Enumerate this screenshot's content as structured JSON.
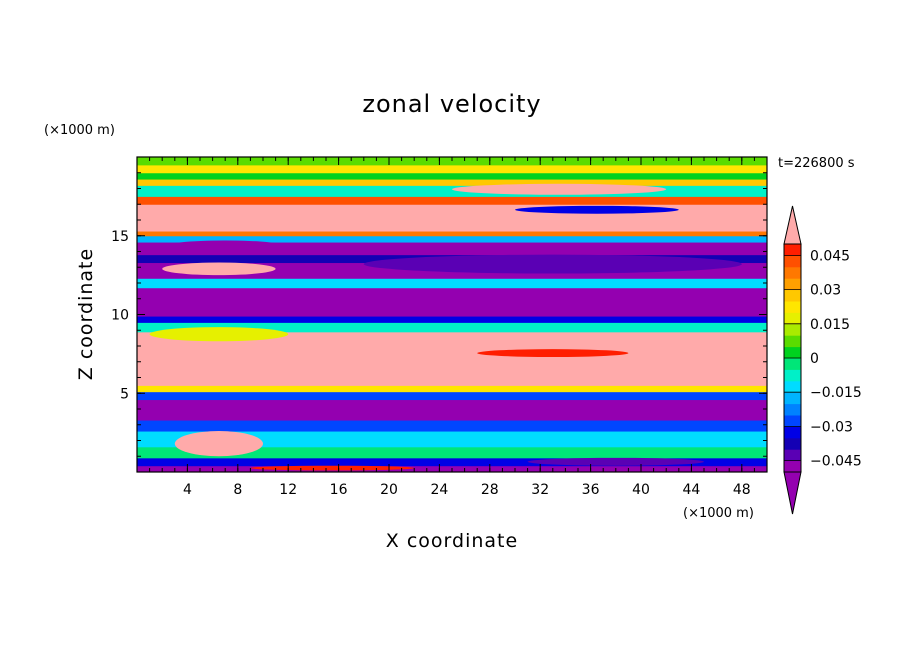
{
  "chart_data": {
    "type": "heatmap",
    "title": "zonal velocity",
    "xlabel": "X coordinate",
    "ylabel": "Z coordinate",
    "x_units_label": "(×1000 m)",
    "z_units_label": "(×1000 m)",
    "time_label": "t=226800 s",
    "xlim": [
      0,
      50
    ],
    "ylim": [
      0,
      20
    ],
    "x_ticks": [
      4,
      8,
      12,
      16,
      20,
      24,
      28,
      32,
      36,
      40,
      44,
      48
    ],
    "x_tick_labels": [
      "4",
      "8",
      "12",
      "16",
      "20",
      "24",
      "28",
      "32",
      "36",
      "40",
      "44",
      "48"
    ],
    "z_ticks": [
      5,
      10,
      15
    ],
    "z_tick_labels": [
      "5",
      "10",
      "15"
    ],
    "colorbar": {
      "levels": [
        -0.05,
        -0.045,
        -0.04,
        -0.035,
        -0.03,
        -0.025,
        -0.02,
        -0.015,
        -0.01,
        -0.005,
        0,
        0.005,
        0.01,
        0.015,
        0.02,
        0.025,
        0.03,
        0.035,
        0.04,
        0.045,
        0.05
      ],
      "colors": [
        "#9400b0",
        "#5a00b4",
        "#1400b4",
        "#0000e6",
        "#0046ff",
        "#0082ff",
        "#00b4ff",
        "#00dcff",
        "#00f0c8",
        "#00e678",
        "#00d21e",
        "#5adc00",
        "#aaeb00",
        "#e6f000",
        "#ffe600",
        "#ffc800",
        "#ffa000",
        "#ff7800",
        "#ff5000",
        "#ff1e00"
      ],
      "under_color": "#9400b0",
      "over_color": "#ffaaaa",
      "tick_values": [
        0.045,
        0.03,
        0.015,
        0,
        -0.015,
        -0.03,
        -0.045
      ],
      "tick_labels": [
        "0.045",
        "0.03",
        "0.015",
        "0",
        "−0.015",
        "−0.03",
        "−0.045"
      ]
    },
    "bands": [
      {
        "z_min": 0.0,
        "z_max": 0.4,
        "value": -0.06
      },
      {
        "z_min": 0.4,
        "z_max": 0.9,
        "value": -0.035
      },
      {
        "z_min": 0.9,
        "z_max": 1.6,
        "value": -0.005
      },
      {
        "z_min": 1.6,
        "z_max": 2.6,
        "value": -0.015
      },
      {
        "z_min": 2.6,
        "z_max": 3.3,
        "value": -0.03
      },
      {
        "z_min": 3.3,
        "z_max": 4.6,
        "value": -0.06
      },
      {
        "z_min": 4.6,
        "z_max": 5.1,
        "value": -0.03
      },
      {
        "z_min": 5.1,
        "z_max": 5.5,
        "value": 0.02
      },
      {
        "z_min": 5.5,
        "z_max": 7.6,
        "value": 0.06
      },
      {
        "z_min": 7.6,
        "z_max": 8.3,
        "value": 0.06
      },
      {
        "z_min": 8.3,
        "z_max": 8.9,
        "value": 0.06
      },
      {
        "z_min": 8.9,
        "z_max": 9.5,
        "value": -0.01
      },
      {
        "z_min": 9.5,
        "z_max": 9.9,
        "value": -0.035
      },
      {
        "z_min": 9.9,
        "z_max": 11.7,
        "value": -0.06
      },
      {
        "z_min": 11.7,
        "z_max": 12.3,
        "value": -0.015
      },
      {
        "z_min": 12.3,
        "z_max": 13.3,
        "value": -0.06
      },
      {
        "z_min": 13.3,
        "z_max": 13.8,
        "value": -0.04
      },
      {
        "z_min": 13.8,
        "z_max": 14.6,
        "value": -0.06
      },
      {
        "z_min": 14.6,
        "z_max": 15.0,
        "value": -0.02
      },
      {
        "z_min": 15.0,
        "z_max": 15.3,
        "value": 0.035
      },
      {
        "z_min": 15.3,
        "z_max": 17.0,
        "value": 0.06
      },
      {
        "z_min": 17.0,
        "z_max": 17.5,
        "value": 0.04
      },
      {
        "z_min": 17.5,
        "z_max": 18.2,
        "value": -0.01
      },
      {
        "z_min": 18.2,
        "z_max": 18.6,
        "value": 0.025
      },
      {
        "z_min": 18.6,
        "z_max": 19.0,
        "value": 0.0
      },
      {
        "z_min": 19.0,
        "z_max": 19.5,
        "value": 0.02
      },
      {
        "z_min": 19.5,
        "z_max": 20.0,
        "value": 0.005
      }
    ],
    "features": [
      {
        "x_min": 2,
        "x_max": 11,
        "z_min": 12.5,
        "z_max": 13.3,
        "value": 0.06
      },
      {
        "x_min": 2,
        "x_max": 12,
        "z_min": 13.9,
        "z_max": 14.7,
        "value": -0.06
      },
      {
        "x_min": 18,
        "x_max": 48,
        "z_min": 12.6,
        "z_max": 13.8,
        "value": -0.045
      },
      {
        "x_min": 27,
        "x_max": 39,
        "z_min": 7.3,
        "z_max": 7.8,
        "value": 0.045
      },
      {
        "x_min": 1,
        "x_max": 12,
        "z_min": 8.3,
        "z_max": 9.2,
        "value": 0.015
      },
      {
        "x_min": 25,
        "x_max": 42,
        "z_min": 17.6,
        "z_max": 18.3,
        "value": 0.06
      },
      {
        "x_min": 3,
        "x_max": 10,
        "z_min": 1.0,
        "z_max": 2.6,
        "value": 0.06
      },
      {
        "x_min": 31,
        "x_max": 45,
        "z_min": 0.4,
        "z_max": 0.9,
        "value": -0.045
      },
      {
        "x_min": 9,
        "x_max": 22,
        "z_min": 0.1,
        "z_max": 0.4,
        "value": 0.045
      },
      {
        "x_min": 30,
        "x_max": 43,
        "z_min": 16.4,
        "z_max": 16.9,
        "value": -0.035
      }
    ]
  }
}
